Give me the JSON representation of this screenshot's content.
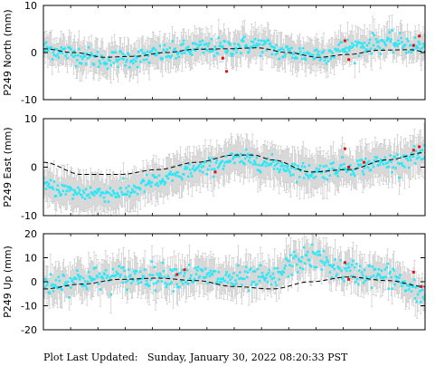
{
  "footer": {
    "label": "Plot Last Updated:",
    "timestamp": "Sunday, January 30, 2022 08:20:33 PST"
  },
  "colors": {
    "points": "#2ee6f5",
    "errorbars": "#c8c8c8",
    "outliers": "#e01010",
    "model": "#000000"
  },
  "chart_data": [
    {
      "type": "scatter",
      "ylabel": "P249 North (mm)",
      "ylim": [
        -10,
        10
      ],
      "yticks": [
        -10,
        0,
        10
      ],
      "x_range": [
        0,
        1
      ],
      "model_line": {
        "x": [
          0.0,
          0.08,
          0.16,
          0.24,
          0.32,
          0.4,
          0.48,
          0.56,
          0.64,
          0.72,
          0.8,
          0.88,
          0.96,
          1.0
        ],
        "y": [
          0.8,
          0.0,
          -1.0,
          -0.8,
          0.0,
          0.7,
          0.8,
          1.0,
          0.0,
          -1.0,
          -0.4,
          0.5,
          0.6,
          0.2
        ]
      },
      "noise": 1.8,
      "errorbar": 3.0,
      "offset_curve": {
        "x": [
          0.0,
          0.15,
          0.3,
          0.45,
          0.55,
          0.65,
          0.72,
          0.82,
          0.9,
          1.0
        ],
        "y": [
          0.0,
          -0.5,
          -0.2,
          0.2,
          0.6,
          0.0,
          0.6,
          1.5,
          1.5,
          0.8
        ]
      },
      "outliers": [
        {
          "x": 0.47,
          "y": -1.2
        },
        {
          "x": 0.48,
          "y": -4.0
        },
        {
          "x": 0.79,
          "y": 2.5
        },
        {
          "x": 0.8,
          "y": -1.5
        },
        {
          "x": 0.97,
          "y": 1.5
        },
        {
          "x": 0.985,
          "y": 3.5
        }
      ]
    },
    {
      "type": "scatter",
      "ylabel": "P249 East (mm)",
      "ylim": [
        -10,
        10
      ],
      "yticks": [
        -10,
        0,
        10
      ],
      "x_range": [
        0,
        1
      ],
      "model_line": {
        "x": [
          0.0,
          0.1,
          0.2,
          0.3,
          0.4,
          0.5,
          0.55,
          0.6,
          0.7,
          0.8,
          0.9,
          1.0
        ],
        "y": [
          1.0,
          -1.5,
          -1.5,
          -0.5,
          1.0,
          2.5,
          2.5,
          1.5,
          -1.0,
          -0.5,
          1.5,
          3.0
        ]
      },
      "noise": 1.6,
      "errorbar": 3.5,
      "offset_curve": {
        "x": [
          0.0,
          0.1,
          0.2,
          0.3,
          0.4,
          0.5,
          0.6,
          0.7,
          0.8,
          0.9,
          1.0
        ],
        "y": [
          -5.0,
          -3.8,
          -3.8,
          -2.5,
          -1.5,
          -1.0,
          -1.0,
          0.0,
          0.5,
          -0.5,
          -0.5
        ]
      },
      "outliers": [
        {
          "x": 0.45,
          "y": -1.0
        },
        {
          "x": 0.79,
          "y": 3.8
        },
        {
          "x": 0.8,
          "y": 0.0
        },
        {
          "x": 0.84,
          "y": 1.0
        },
        {
          "x": 0.97,
          "y": 3.5
        },
        {
          "x": 0.985,
          "y": 4.2
        }
      ]
    },
    {
      "type": "scatter",
      "ylabel": "P249 Up (mm)",
      "ylim": [
        -20,
        20
      ],
      "yticks": [
        -20,
        -10,
        0,
        10,
        20
      ],
      "x_range": [
        0,
        1
      ],
      "model_line": {
        "x": [
          0.0,
          0.1,
          0.2,
          0.3,
          0.4,
          0.5,
          0.6,
          0.7,
          0.8,
          0.9,
          1.0
        ],
        "y": [
          -3.0,
          -1.0,
          1.0,
          1.5,
          0.5,
          -2.0,
          -3.0,
          0.0,
          2.0,
          0.5,
          -2.0
        ]
      },
      "noise": 4.5,
      "errorbar": 6.5,
      "offset_curve": {
        "x": [
          0.0,
          0.1,
          0.2,
          0.3,
          0.4,
          0.5,
          0.6,
          0.65,
          0.7,
          0.8,
          0.9,
          1.0
        ],
        "y": [
          2.0,
          2.0,
          1.0,
          1.0,
          2.0,
          3.0,
          4.0,
          9.0,
          10.0,
          2.0,
          2.0,
          -4.0
        ]
      },
      "outliers": [
        {
          "x": 0.35,
          "y": 3.0
        },
        {
          "x": 0.37,
          "y": 5.0
        },
        {
          "x": 0.79,
          "y": 8.0
        },
        {
          "x": 0.8,
          "y": 1.0
        },
        {
          "x": 0.97,
          "y": 4.0
        },
        {
          "x": 0.99,
          "y": -2.0
        }
      ]
    }
  ]
}
